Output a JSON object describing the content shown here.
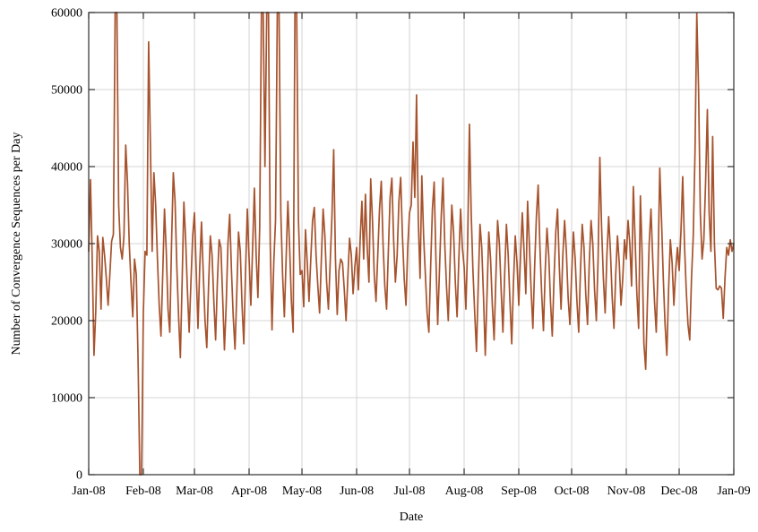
{
  "chart_data": {
    "type": "line",
    "title": "",
    "xlabel": "Date",
    "ylabel": "Number of Convergence Sequences per Day",
    "x_tick_labels": [
      "Jan-08",
      "Feb-08",
      "Mar-08",
      "Apr-08",
      "May-08",
      "Jun-08",
      "Jul-08",
      "Aug-08",
      "Sep-08",
      "Oct-08",
      "Nov-08",
      "Dec-08",
      "Jan-09"
    ],
    "x_tick_day_offsets": [
      0,
      31,
      60,
      91,
      121,
      152,
      182,
      213,
      244,
      274,
      305,
      335,
      366
    ],
    "y_ticks": [
      0,
      10000,
      20000,
      30000,
      40000,
      50000,
      60000
    ],
    "y_tick_labels": [
      "0",
      "10000",
      "20000",
      "30000",
      "40000",
      "50000",
      "60000"
    ],
    "ylim": [
      0,
      60000
    ],
    "x_range_days": 366,
    "grid": true,
    "legend": "none",
    "line_color": "#a6522c",
    "grid_color": "#d4d4d4",
    "border_color": "#2e2e2e",
    "note": "Daily values for 2008 (leap year) plus 1 Jan 2009; values shown as 60000 are spikes clipped at the top axis limit.",
    "series": [
      {
        "name": "Convergence sequences per day",
        "start_label": "Jan-08",
        "interval": "daily",
        "values": [
          29000,
          38300,
          28000,
          15500,
          21200,
          31000,
          29000,
          21500,
          30800,
          28500,
          25500,
          22000,
          26000,
          30300,
          31200,
          60000,
          60000,
          35000,
          29500,
          28000,
          31000,
          42800,
          38000,
          30000,
          25000,
          20500,
          28000,
          26000,
          15000,
          0,
          0,
          21000,
          29000,
          28500,
          56200,
          43000,
          29000,
          39200,
          35000,
          28000,
          22000,
          18000,
          26000,
          34500,
          29000,
          21500,
          18500,
          30000,
          39200,
          35500,
          27000,
          20500,
          15200,
          25000,
          35400,
          30500,
          24000,
          18500,
          25000,
          31000,
          34000,
          26500,
          19000,
          27000,
          32800,
          26000,
          20000,
          16500,
          24500,
          31000,
          28500,
          22500,
          17500,
          25000,
          30500,
          29500,
          23000,
          16200,
          22000,
          30000,
          33800,
          26500,
          20500,
          16300,
          23500,
          31500,
          29000,
          22000,
          17000,
          26500,
          34500,
          28000,
          22000,
          29500,
          37200,
          28500,
          23000,
          32000,
          60000,
          60000,
          40000,
          60000,
          60000,
          30000,
          18800,
          27500,
          33000,
          60000,
          60000,
          34000,
          26000,
          20500,
          28000,
          35500,
          29500,
          22500,
          18500,
          60000,
          60000,
          33000,
          26000,
          26500,
          21800,
          31800,
          27500,
          22500,
          28000,
          33000,
          34700,
          28500,
          24500,
          21000,
          28000,
          34500,
          31000,
          25000,
          21500,
          27500,
          33500,
          42200,
          28000,
          20800,
          26500,
          28000,
          27500,
          24000,
          20000,
          25500,
          30700,
          28500,
          23500,
          27000,
          29500,
          24000,
          30500,
          35500,
          28000,
          36400,
          29500,
          25000,
          38400,
          33000,
          26000,
          22500,
          28500,
          34500,
          38100,
          30000,
          24500,
          21500,
          29000,
          36000,
          38500,
          30500,
          25000,
          28500,
          35500,
          38600,
          31000,
          25500,
          22000,
          29500,
          34000,
          35000,
          43200,
          36000,
          49300,
          33000,
          25500,
          38800,
          31000,
          26000,
          21000,
          18500,
          27000,
          34500,
          38000,
          28000,
          19500,
          26500,
          33500,
          38500,
          30000,
          24500,
          20000,
          27500,
          35000,
          31500,
          25000,
          20500,
          28000,
          34500,
          29500,
          27000,
          21500,
          30000,
          45500,
          34000,
          26500,
          21000,
          16000,
          24500,
          32500,
          29500,
          23000,
          15500,
          23500,
          31500,
          28000,
          22000,
          17500,
          25500,
          33000,
          30000,
          24000,
          18500,
          26000,
          32500,
          28500,
          22500,
          17000,
          25000,
          31000,
          27500,
          22000,
          28500,
          34000,
          29000,
          23500,
          35500,
          30000,
          24000,
          19000,
          27000,
          33500,
          37600,
          29500,
          23500,
          18700,
          26500,
          32000,
          28500,
          22500,
          18000,
          25500,
          31500,
          34500,
          27000,
          21500,
          28500,
          33000,
          29000,
          23000,
          19500,
          26000,
          31500,
          28000,
          22500,
          18500,
          26500,
          32500,
          29500,
          23500,
          19500,
          27500,
          33000,
          30000,
          24000,
          20000,
          28000,
          41200,
          32000,
          25500,
          21000,
          28500,
          33500,
          29000,
          23000,
          19000,
          26000,
          31000,
          27500,
          22000,
          25500,
          30500,
          28000,
          33000,
          30000,
          24500,
          37400,
          30500,
          23500,
          19000,
          36200,
          28500,
          17000,
          13700,
          22500,
          30000,
          34500,
          28000,
          22500,
          18500,
          27000,
          39800,
          33000,
          25500,
          19500,
          15500,
          24000,
          30500,
          27500,
          22000,
          26500,
          29500,
          26500,
          31500,
          38700,
          30000,
          24000,
          19500,
          17500,
          25500,
          31000,
          42000,
          59900,
          50000,
          34000,
          28000,
          30500,
          38000,
          47400,
          34000,
          29000,
          43900,
          30000,
          24200,
          24000,
          24500,
          24200,
          20300,
          25500,
          29500,
          28500,
          30500,
          29000,
          30000
        ]
      }
    ]
  }
}
